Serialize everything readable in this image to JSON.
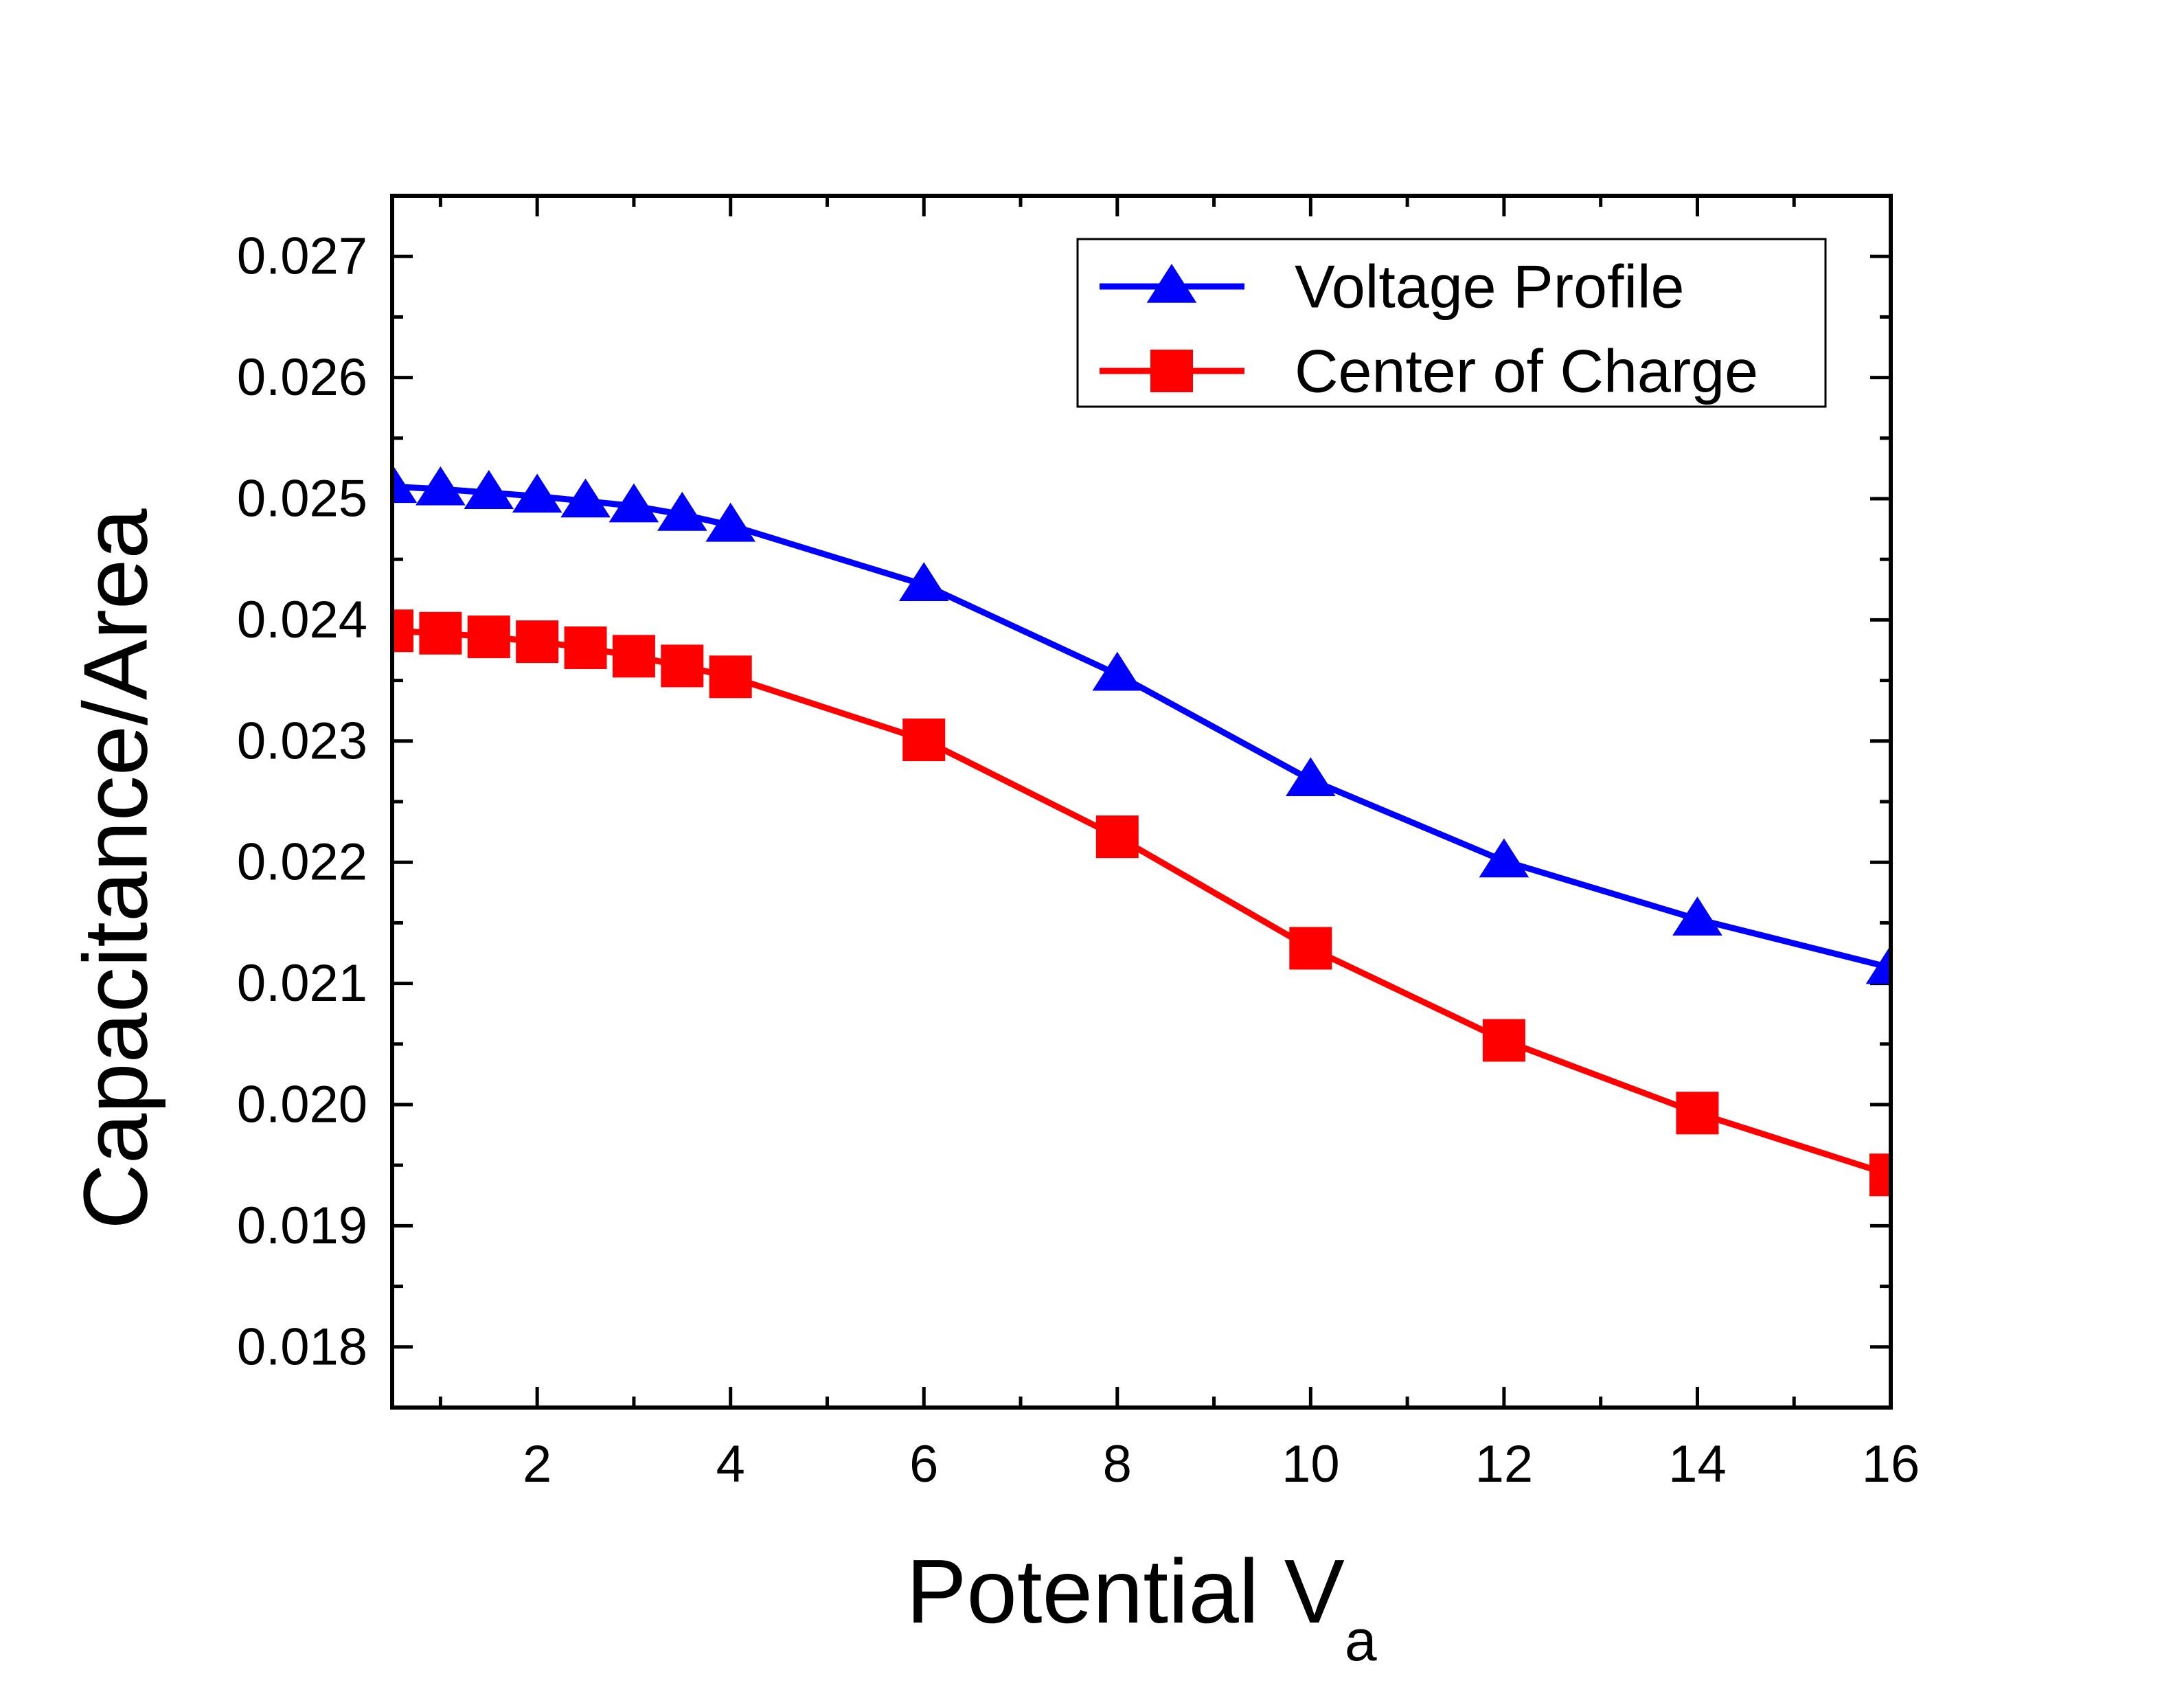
{
  "chart_data": {
    "type": "line",
    "title": "",
    "xlabel": "Potential V",
    "xlabel_subscript": "a",
    "ylabel": "Capacitance/Area",
    "xlim": [
      0.5,
      16
    ],
    "ylim": [
      0.0175,
      0.0275
    ],
    "x_ticks": [
      2,
      4,
      6,
      8,
      10,
      12,
      14,
      16
    ],
    "x_tick_labels": [
      "2",
      "4",
      "6",
      "8",
      "10",
      "12",
      "14",
      "16"
    ],
    "y_ticks": [
      0.018,
      0.019,
      0.02,
      0.021,
      0.022,
      0.023,
      0.024,
      0.025,
      0.026,
      0.027
    ],
    "y_tick_labels": [
      "0.018",
      "0.019",
      "0.020",
      "0.021",
      "0.022",
      "0.023",
      "0.024",
      "0.025",
      "0.026",
      "0.027"
    ],
    "grid": false,
    "legend_position": "top-right",
    "series": [
      {
        "name": "Voltage Profile",
        "color": "#0000ff",
        "marker": "triangle",
        "x": [
          0.5,
          1,
          1.5,
          2,
          2.5,
          3,
          3.5,
          4,
          6,
          8,
          10,
          12,
          14,
          16
        ],
        "y": [
          0.0251,
          0.02508,
          0.02505,
          0.02502,
          0.02498,
          0.02494,
          0.02487,
          0.02478,
          0.02429,
          0.02355,
          0.02268,
          0.02201,
          0.02153,
          0.02113
        ]
      },
      {
        "name": "Center of Charge",
        "color": "#ff0000",
        "marker": "square",
        "x": [
          0.5,
          1,
          1.5,
          2,
          2.5,
          3,
          3.5,
          4,
          6,
          8,
          10,
          12,
          14,
          16
        ],
        "y": [
          0.02391,
          0.02389,
          0.02386,
          0.02382,
          0.02377,
          0.0237,
          0.02362,
          0.02353,
          0.02301,
          0.02221,
          0.02129,
          0.02053,
          0.01993,
          0.01942
        ]
      }
    ]
  }
}
